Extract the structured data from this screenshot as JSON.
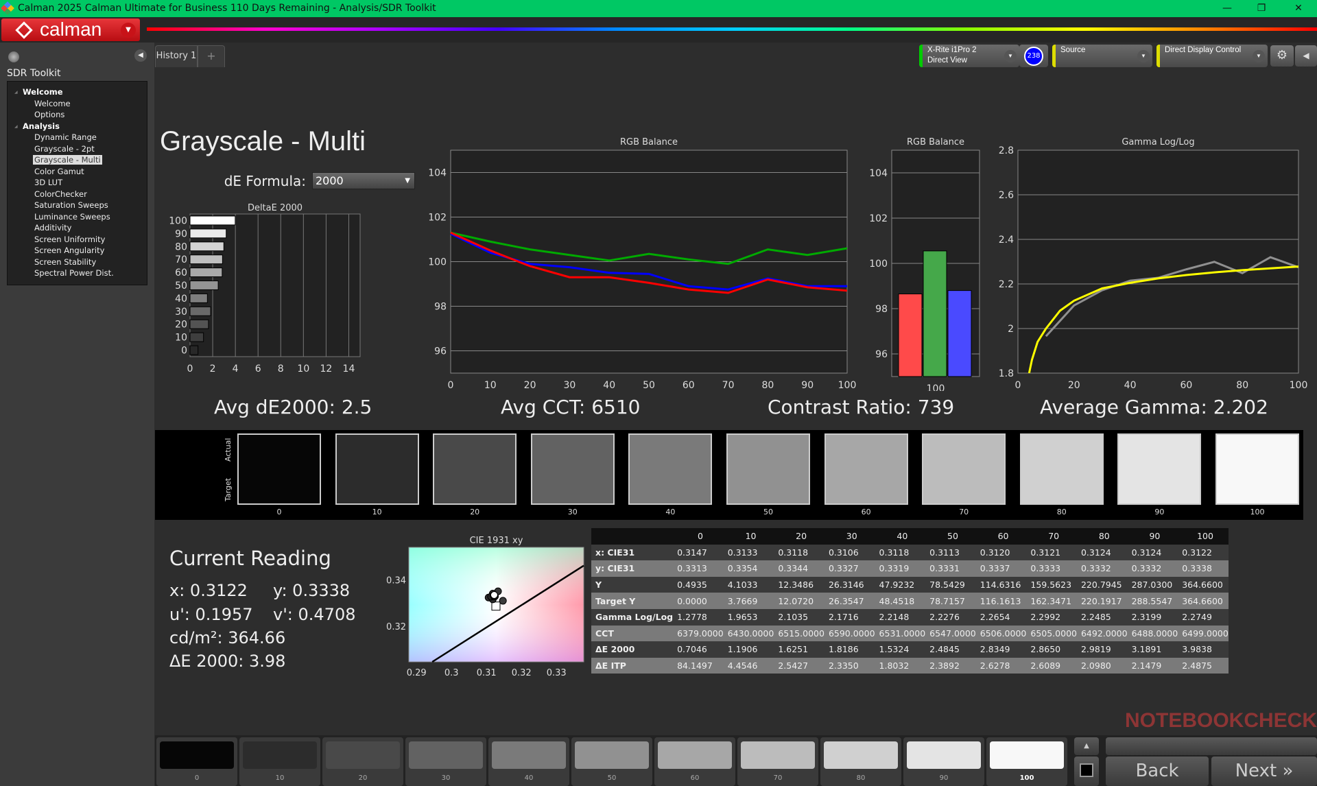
{
  "window": {
    "title": "Calman 2025 Calman Ultimate for Business 110 Days Remaining  - Analysis/SDR Toolkit",
    "minimize": "—",
    "maximize": "❐",
    "close": "✕"
  },
  "app": {
    "logo_text": "calman"
  },
  "sidebar": {
    "title": "SDR Toolkit",
    "groups": [
      {
        "label": "Welcome",
        "items": [
          "Welcome",
          "Options"
        ]
      },
      {
        "label": "Analysis",
        "items": [
          "Dynamic Range",
          "Grayscale - 2pt",
          "Grayscale - Multi",
          "Color Gamut",
          "3D LUT",
          "ColorChecker",
          "Saturation Sweeps",
          "Luminance Sweeps",
          "Additivity",
          "Screen Uniformity",
          "Screen Angularity",
          "Screen Stability",
          "Spectral Power Dist."
        ]
      }
    ],
    "selected": "Grayscale - Multi"
  },
  "tabs": {
    "history": "History 1",
    "add": "+"
  },
  "devices": {
    "meter_line1": "X-Rite i1Pro 2",
    "meter_line2": "Direct View",
    "meter_badge": "238",
    "source": "Source",
    "display": "Direct Display Control",
    "meter_color": "#00cc00",
    "source_color": "#e0e000",
    "display_color": "#e0e000"
  },
  "page": {
    "title": "Grayscale - Multi",
    "de_formula_label": "dE Formula:",
    "de_formula_value": "2000"
  },
  "summary": {
    "avg_de": "Avg dE2000: 2.5",
    "avg_cct": "Avg CCT: 6510",
    "contrast": "Contrast Ratio: 739",
    "avg_gamma": "Average Gamma: 2.202"
  },
  "chart_data": [
    {
      "type": "bar",
      "title": "DeltaE 2000",
      "orientation": "horizontal",
      "categories": [
        "0",
        "10",
        "20",
        "30",
        "40",
        "50",
        "60",
        "70",
        "80",
        "90",
        "100"
      ],
      "values": [
        0.7046,
        1.1906,
        1.6251,
        1.8186,
        1.5324,
        2.4845,
        2.8349,
        2.865,
        2.9819,
        3.1891,
        3.9838
      ],
      "xlim": [
        0,
        15
      ],
      "xticks": [
        "0",
        "2",
        "4",
        "6",
        "8",
        "10",
        "12",
        "14"
      ],
      "grid": true
    },
    {
      "type": "line",
      "title": "RGB Balance",
      "x": [
        0,
        10,
        20,
        30,
        40,
        50,
        60,
        70,
        80,
        90,
        100
      ],
      "xticks": [
        "0",
        "10",
        "20",
        "30",
        "40",
        "50",
        "60",
        "70",
        "80",
        "90",
        "100"
      ],
      "yticks": [
        "96",
        "98",
        "100",
        "102",
        "104"
      ],
      "ylim": [
        95,
        105
      ],
      "grid": true,
      "series": [
        {
          "color": "#00aa00",
          "values": [
            101.3,
            100.9,
            100.55,
            100.3,
            100.05,
            100.35,
            100.1,
            99.9,
            100.55,
            100.3,
            100.6
          ]
        },
        {
          "color": "#0000ff",
          "values": [
            101.25,
            100.4,
            99.9,
            99.75,
            99.5,
            99.45,
            98.9,
            98.75,
            99.25,
            98.9,
            98.9
          ]
        },
        {
          "color": "#ff0000",
          "values": [
            101.3,
            100.5,
            99.8,
            99.3,
            99.3,
            99.05,
            98.75,
            98.6,
            99.2,
            98.85,
            98.7
          ]
        }
      ]
    },
    {
      "type": "bar",
      "title": "RGB Balance",
      "categories": [
        "100"
      ],
      "ylim": [
        95,
        105
      ],
      "yticks": [
        "96",
        "98",
        "100",
        "102",
        "104"
      ],
      "series": [
        {
          "color": "#ff4a4a",
          "values": [
            98.65
          ]
        },
        {
          "color": "#45a84a",
          "values": [
            100.55
          ]
        },
        {
          "color": "#4a4aff",
          "values": [
            98.8
          ]
        }
      ]
    },
    {
      "type": "line",
      "title": "Gamma Log/Log",
      "ylim": [
        1.8,
        2.8
      ],
      "xlim": [
        0,
        100
      ],
      "xticks": [
        "0",
        "20",
        "40",
        "60",
        "80",
        "100"
      ],
      "yticks": [
        "1.8",
        "2",
        "2.2",
        "2.4",
        "2.6",
        "2.8"
      ],
      "grid": true,
      "series": [
        {
          "color": "#909090",
          "x": [
            10,
            20,
            30,
            40,
            50,
            60,
            70,
            80,
            90,
            100
          ],
          "values": [
            1.9653,
            2.1035,
            2.1716,
            2.2148,
            2.2276,
            2.2654,
            2.2992,
            2.2485,
            2.3199,
            2.2749
          ]
        },
        {
          "color": "#ffff00",
          "x": [
            4,
            5,
            7,
            10,
            15,
            20,
            30,
            40,
            50,
            60,
            70,
            80,
            90,
            100
          ],
          "values": [
            1.8,
            1.86,
            1.94,
            2.0,
            2.08,
            2.125,
            2.18,
            2.205,
            2.225,
            2.24,
            2.252,
            2.262,
            2.27,
            2.278
          ]
        }
      ]
    },
    {
      "type": "scatter",
      "title": "CIE 1931 xy",
      "xlim": [
        0.2878,
        0.3378
      ],
      "ylim": [
        0.3049,
        0.3544
      ],
      "xticks": [
        "0.29",
        "0.3",
        "0.31",
        "0.32",
        "0.33"
      ],
      "yticks": [
        "0.32",
        "0.34"
      ],
      "points_x": [
        0.3147,
        0.3133,
        0.3118,
        0.3106,
        0.3118,
        0.3113,
        0.312,
        0.3121,
        0.3124,
        0.3124,
        0.3122
      ],
      "points_y": [
        0.3313,
        0.3354,
        0.3344,
        0.3327,
        0.3319,
        0.3331,
        0.3337,
        0.3333,
        0.3332,
        0.3332,
        0.3338
      ],
      "target": [
        0.3127,
        0.329
      ],
      "planckian": [
        [
          0.2945,
          0.3049
        ],
        [
          0.3378,
          0.3465
        ]
      ]
    }
  ],
  "swatches": {
    "actual_label": "Actual",
    "target_label": "Target",
    "levels": [
      "0",
      "10",
      "20",
      "30",
      "40",
      "50",
      "60",
      "70",
      "80",
      "90",
      "100"
    ]
  },
  "current_reading": {
    "title": "Current Reading",
    "x": "x: 0.3122",
    "y": "y: 0.3338",
    "u": "u': 0.1957",
    "v": "v': 0.4708",
    "lum": "cd/m²: 364.66",
    "de": "ΔE 2000: 3.98"
  },
  "table": {
    "columns": [
      "0",
      "10",
      "20",
      "30",
      "40",
      "50",
      "60",
      "70",
      "80",
      "90",
      "100"
    ],
    "rows": [
      {
        "label": "x: CIE31",
        "values": [
          "0.3147",
          "0.3133",
          "0.3118",
          "0.3106",
          "0.3118",
          "0.3113",
          "0.3120",
          "0.3121",
          "0.3124",
          "0.3124",
          "0.3122"
        ]
      },
      {
        "label": "y: CIE31",
        "values": [
          "0.3313",
          "0.3354",
          "0.3344",
          "0.3327",
          "0.3319",
          "0.3331",
          "0.3337",
          "0.3333",
          "0.3332",
          "0.3332",
          "0.3338"
        ]
      },
      {
        "label": "Y",
        "values": [
          "0.4935",
          "4.1033",
          "12.3486",
          "26.3146",
          "47.9232",
          "78.5429",
          "114.6316",
          "159.5623",
          "220.7945",
          "287.0300",
          "364.6600"
        ]
      },
      {
        "label": "Target Y",
        "values": [
          "0.0000",
          "3.7669",
          "12.0720",
          "26.3547",
          "48.4518",
          "78.7157",
          "116.1613",
          "162.3471",
          "220.1917",
          "288.5547",
          "364.6600"
        ]
      },
      {
        "label": "Gamma Log/Log",
        "values": [
          "1.2778",
          "1.9653",
          "2.1035",
          "2.1716",
          "2.2148",
          "2.2276",
          "2.2654",
          "2.2992",
          "2.2485",
          "2.3199",
          "2.2749"
        ]
      },
      {
        "label": "CCT",
        "values": [
          "6379.0000",
          "6430.0000",
          "6515.0000",
          "6590.0000",
          "6531.0000",
          "6547.0000",
          "6506.0000",
          "6505.0000",
          "6492.0000",
          "6488.0000",
          "6499.0000"
        ]
      },
      {
        "label": "ΔE 2000",
        "values": [
          "0.7046",
          "1.1906",
          "1.6251",
          "1.8186",
          "1.5324",
          "2.4845",
          "2.8349",
          "2.8650",
          "2.9819",
          "3.1891",
          "3.9838"
        ]
      },
      {
        "label": "ΔE ITP",
        "values": [
          "84.1497",
          "4.4546",
          "2.5427",
          "2.3350",
          "1.8032",
          "2.3892",
          "2.6278",
          "2.6089",
          "2.0980",
          "2.1479",
          "2.4875"
        ]
      }
    ]
  },
  "bottom": {
    "levels": [
      "0",
      "10",
      "20",
      "30",
      "40",
      "50",
      "60",
      "70",
      "80",
      "90",
      "100"
    ],
    "selected": "100",
    "back": "Back",
    "next": "Next",
    "next_icon": "»",
    "watermark": "NOTEBOOKCHECK"
  }
}
